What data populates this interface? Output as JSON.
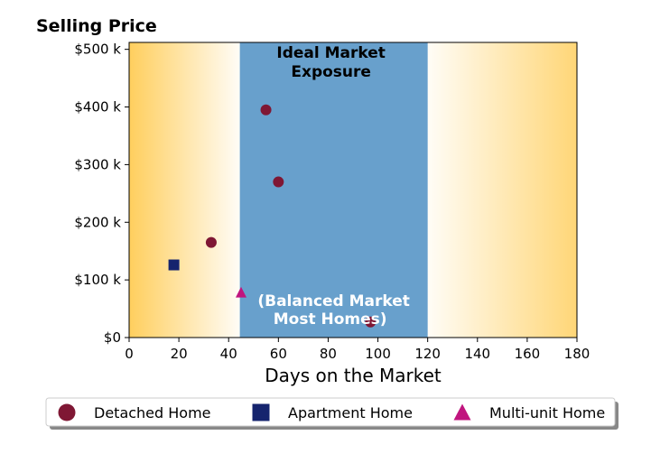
{
  "chart_data": {
    "type": "scatter",
    "title": "Selling Price",
    "xlabel": "Days on the Market",
    "ylabel": "",
    "xlim": [
      0,
      180
    ],
    "ylim": [
      0,
      512000
    ],
    "x_ticks": [
      0,
      20,
      40,
      60,
      80,
      100,
      120,
      140,
      160,
      180
    ],
    "x_tick_labels": [
      "0",
      "20",
      "40",
      "60",
      "80",
      "100",
      "120",
      "140",
      "160",
      "180"
    ],
    "y_ticks": [
      0,
      100000,
      200000,
      300000,
      400000,
      500000
    ],
    "y_tick_labels": [
      "$0",
      "$100 k",
      "$200 k",
      "$300 k",
      "$400 k",
      "$500 k"
    ],
    "grid": false,
    "legend_position": "below",
    "background_gradient_color": "#ffcc55",
    "band": {
      "x_range": [
        44.5,
        120
      ],
      "color": "#68a0cc",
      "title_lines": [
        "Ideal Market",
        "Exposure"
      ],
      "subtitle_lines": [
        "(Balanced Market",
        "Most Homes)"
      ]
    },
    "series": [
      {
        "name": "Detached Home",
        "marker": "circle",
        "color": "#7f1734",
        "points": [
          [
            33,
            165000
          ],
          [
            55,
            395000
          ],
          [
            60,
            270000
          ],
          [
            97,
            27000
          ]
        ]
      },
      {
        "name": "Apartment Home",
        "marker": "square",
        "color": "#15246e",
        "points": [
          [
            18,
            126000
          ]
        ]
      },
      {
        "name": "Multi-unit Home",
        "marker": "triangle",
        "color": "#c0157e",
        "points": [
          [
            45,
            78000
          ]
        ]
      }
    ]
  }
}
